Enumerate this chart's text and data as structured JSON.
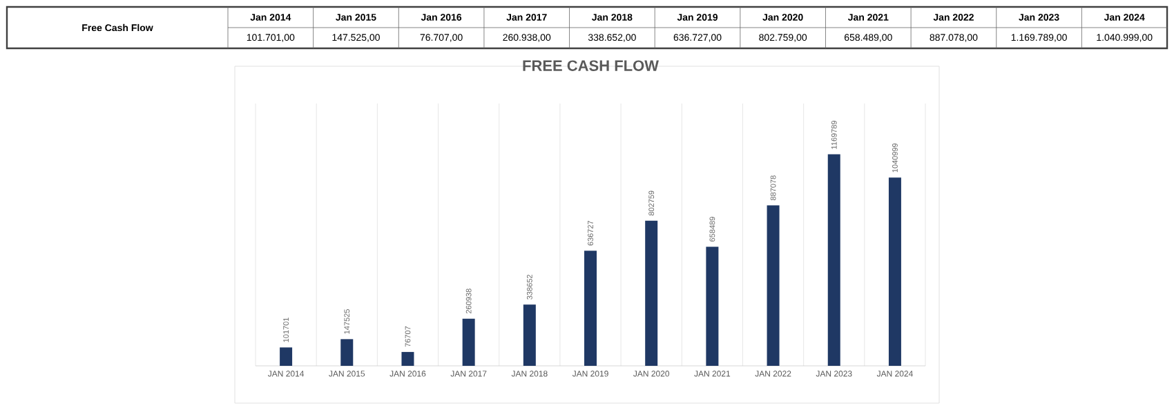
{
  "chart_data": [
    {
      "type": "other",
      "title": "Free Cash Flow",
      "categories": [
        "Jan 2014",
        "Jan 2015",
        "Jan 2016",
        "Jan 2017",
        "Jan 2018",
        "Jan 2019",
        "Jan 2020",
        "Jan 2021",
        "Jan 2022",
        "Jan 2023",
        "Jan 2024"
      ],
      "values": [
        101701.0,
        147525.0,
        76707.0,
        260938.0,
        338652.0,
        636727.0,
        802759.0,
        658489.0,
        887078.0,
        1169789.0,
        1040999.0
      ],
      "value_labels": [
        "101.701,00",
        "147.525,00",
        "76.707,00",
        "260.938,00",
        "338.652,00",
        "636.727,00",
        "802.759,00",
        "658.489,00",
        "887.078,00",
        "1.169.789,00",
        "1.040.999,00"
      ]
    },
    {
      "type": "bar",
      "title": "FREE CASH FLOW",
      "categories": [
        "JAN 2014",
        "JAN 2015",
        "JAN 2016",
        "JAN 2017",
        "JAN 2018",
        "JAN 2019",
        "JAN 2020",
        "JAN 2021",
        "JAN 2022",
        "JAN 2023",
        "JAN 2024"
      ],
      "values": [
        101701,
        147525,
        76707,
        260938,
        338652,
        636727,
        802759,
        658489,
        887078,
        1169789,
        1040999
      ],
      "color": "#1f3864",
      "data_labels": true,
      "grid": "x"
    }
  ]
}
